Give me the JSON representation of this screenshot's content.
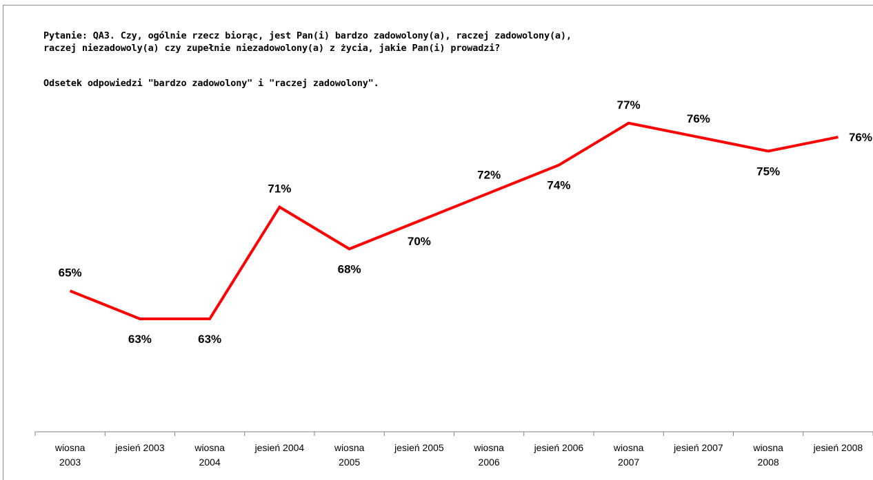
{
  "question": {
    "line1": "Pytanie: QA3. Czy, ogólnie rzecz biorąc, jest Pan(i) bardzo zadowolony(a), raczej zadowolony(a),",
    "line2": "raczej niezadowoly(a) czy zupełnie niezadowolony(a) z życia, jakie Pan(i) prowadzi?",
    "line3": "Odsetek odpowiedzi \"bardzo zadowolony\" i \"raczej zadowolony\"."
  },
  "chart_data": {
    "type": "line",
    "categories": [
      [
        "wiosna",
        "2003"
      ],
      [
        "jesień 2003"
      ],
      [
        "wiosna",
        "2004"
      ],
      [
        "jesień 2004"
      ],
      [
        "wiosna",
        "2005"
      ],
      [
        "jesień 2005"
      ],
      [
        "wiosna",
        "2006"
      ],
      [
        "jesień 2006"
      ],
      [
        "wiosna",
        "2007"
      ],
      [
        "jesień 2007"
      ],
      [
        "wiosna",
        "2008"
      ],
      [
        "jesień 2008"
      ]
    ],
    "values": [
      65,
      63,
      63,
      71,
      68,
      70,
      72,
      74,
      77,
      76,
      75,
      76
    ],
    "value_labels": [
      "65%",
      "63%",
      "63%",
      "71%",
      "68%",
      "70%",
      "72%",
      "74%",
      "77%",
      "76%",
      "75%",
      "76%"
    ],
    "label_side": [
      "above",
      "below",
      "below",
      "above",
      "below",
      "below",
      "above",
      "below",
      "above",
      "above",
      "below",
      "above"
    ],
    "line_color": "#ff0000",
    "grid": false,
    "legend": "none"
  }
}
